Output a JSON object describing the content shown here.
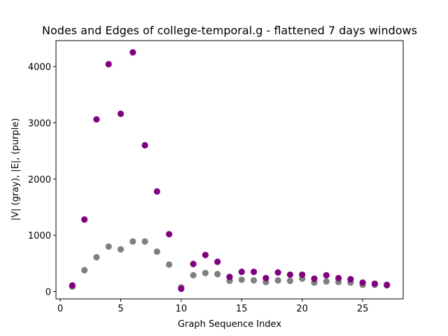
{
  "chart_data": {
    "type": "scatter",
    "title": "Nodes and Edges of college-temporal.g - flattened 7 days windows",
    "xlabel": "Graph Sequence Index",
    "ylabel": "|V| (gray), |E|, (purple)",
    "xlim": [
      -0.35,
      28.35
    ],
    "ylim": [
      -130,
      4460
    ],
    "xticks": [
      0,
      5,
      10,
      15,
      20,
      25
    ],
    "yticks": [
      0,
      1000,
      2000,
      3000,
      4000
    ],
    "grid": false,
    "series": [
      {
        "color": "#808080",
        "x": [
          1,
          2,
          3,
          4,
          5,
          6,
          7,
          8,
          9,
          10,
          11,
          12,
          13,
          14,
          15,
          16,
          17,
          18,
          19,
          20,
          21,
          22,
          23,
          24,
          25,
          26,
          27
        ],
        "y": [
          90,
          380,
          610,
          800,
          750,
          890,
          890,
          710,
          480,
          75,
          290,
          330,
          310,
          190,
          210,
          200,
          170,
          200,
          190,
          230,
          160,
          180,
          170,
          160,
          120,
          120,
          110
        ]
      },
      {
        "color": "#800080",
        "x": [
          1,
          2,
          3,
          4,
          5,
          6,
          7,
          8,
          9,
          10,
          11,
          12,
          13,
          14,
          15,
          16,
          17,
          18,
          19,
          20,
          21,
          22,
          23,
          24,
          25,
          26,
          27
        ],
        "y": [
          110,
          1280,
          3060,
          4040,
          3160,
          4250,
          2600,
          1780,
          1020,
          50,
          490,
          650,
          530,
          260,
          350,
          350,
          240,
          340,
          300,
          300,
          230,
          290,
          240,
          220,
          160,
          140,
          120
        ]
      }
    ]
  }
}
